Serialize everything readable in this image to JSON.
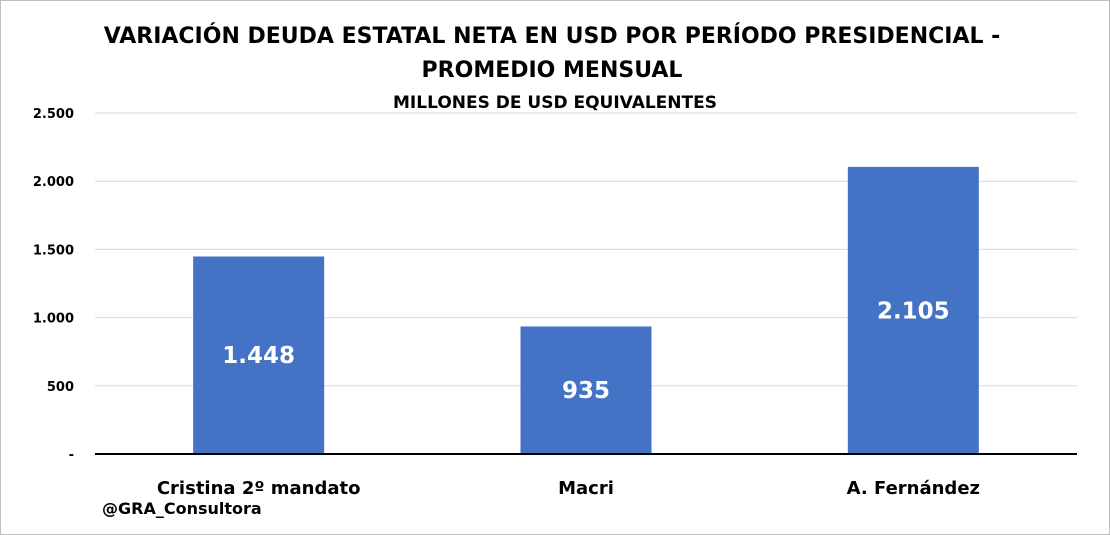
{
  "chart_data": {
    "type": "bar",
    "title_line_1": "VARIACIÓN DEUDA ESTATAL NETA EN USD POR PERÍODO PRESIDENCIAL -",
    "title_line_2": "PROMEDIO MENSUAL",
    "subtitle": "MILLONES DE USD EQUIVALENTES",
    "categories": [
      "Cristina 2º mandato",
      "Macri",
      "A. Fernández"
    ],
    "values": [
      1448,
      935,
      2105
    ],
    "data_labels": [
      "1.448",
      "935",
      "2.105"
    ],
    "xlabel": "",
    "ylabel": "",
    "ylim": [
      0,
      2500
    ],
    "y_ticks": [
      0,
      500,
      1000,
      1500,
      2000,
      2500
    ],
    "y_tick_labels": [
      "-",
      "500",
      "1.000",
      "1.500",
      "2.000",
      "2.500"
    ],
    "grid": true,
    "legend": "none",
    "bar_color": "#4472C4",
    "grid_color": "#d9d9d9",
    "axis_color": "#000000"
  },
  "watermark": "@GRA_Consultora"
}
